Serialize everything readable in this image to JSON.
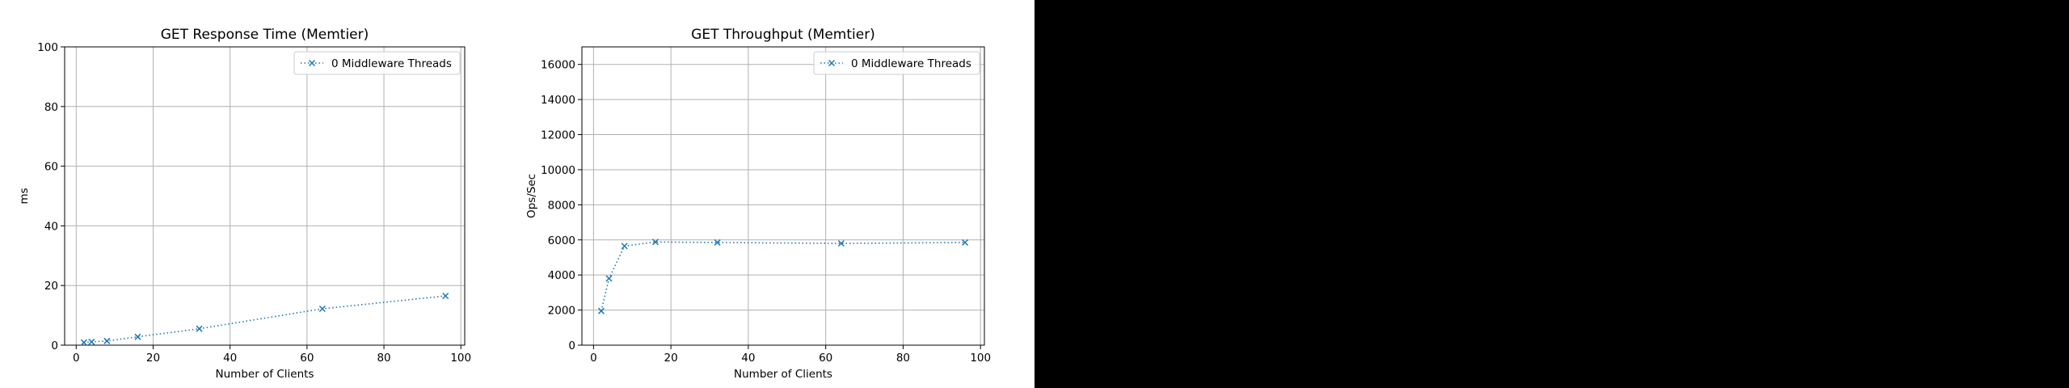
{
  "chart_data": [
    {
      "type": "line",
      "title": "GET Response Time (Memtier)",
      "xlabel": "Number of Clients",
      "ylabel": "ms",
      "xlim": [
        -3,
        101
      ],
      "ylim": [
        0,
        100
      ],
      "xticks": [
        0,
        20,
        40,
        60,
        80,
        100
      ],
      "yticks": [
        0,
        20,
        40,
        60,
        80,
        100
      ],
      "grid": true,
      "legend": "upper right",
      "series": [
        {
          "name": "0 Middleware Threads",
          "color": "#1f77b4",
          "marker": "x",
          "linestyle": "dotted",
          "x": [
            2,
            4,
            8,
            16,
            32,
            64,
            96
          ],
          "y": [
            0.9,
            1.1,
            1.4,
            2.8,
            5.5,
            12.2,
            16.5
          ]
        }
      ]
    },
    {
      "type": "line",
      "title": "GET Throughput (Memtier)",
      "xlabel": "Number of Clients",
      "ylabel": "Ops/Sec",
      "xlim": [
        -3,
        101
      ],
      "ylim": [
        0,
        17000
      ],
      "xticks": [
        0,
        20,
        40,
        60,
        80,
        100
      ],
      "yticks": [
        0,
        2000,
        4000,
        6000,
        8000,
        10000,
        12000,
        14000,
        16000
      ],
      "grid": true,
      "legend": "upper right",
      "series": [
        {
          "name": "0 Middleware Threads",
          "color": "#1f77b4",
          "marker": "x",
          "linestyle": "dotted",
          "x": [
            2,
            4,
            8,
            16,
            32,
            64,
            96
          ],
          "y": [
            1950,
            3800,
            5650,
            5880,
            5850,
            5800,
            5850
          ]
        }
      ]
    }
  ]
}
